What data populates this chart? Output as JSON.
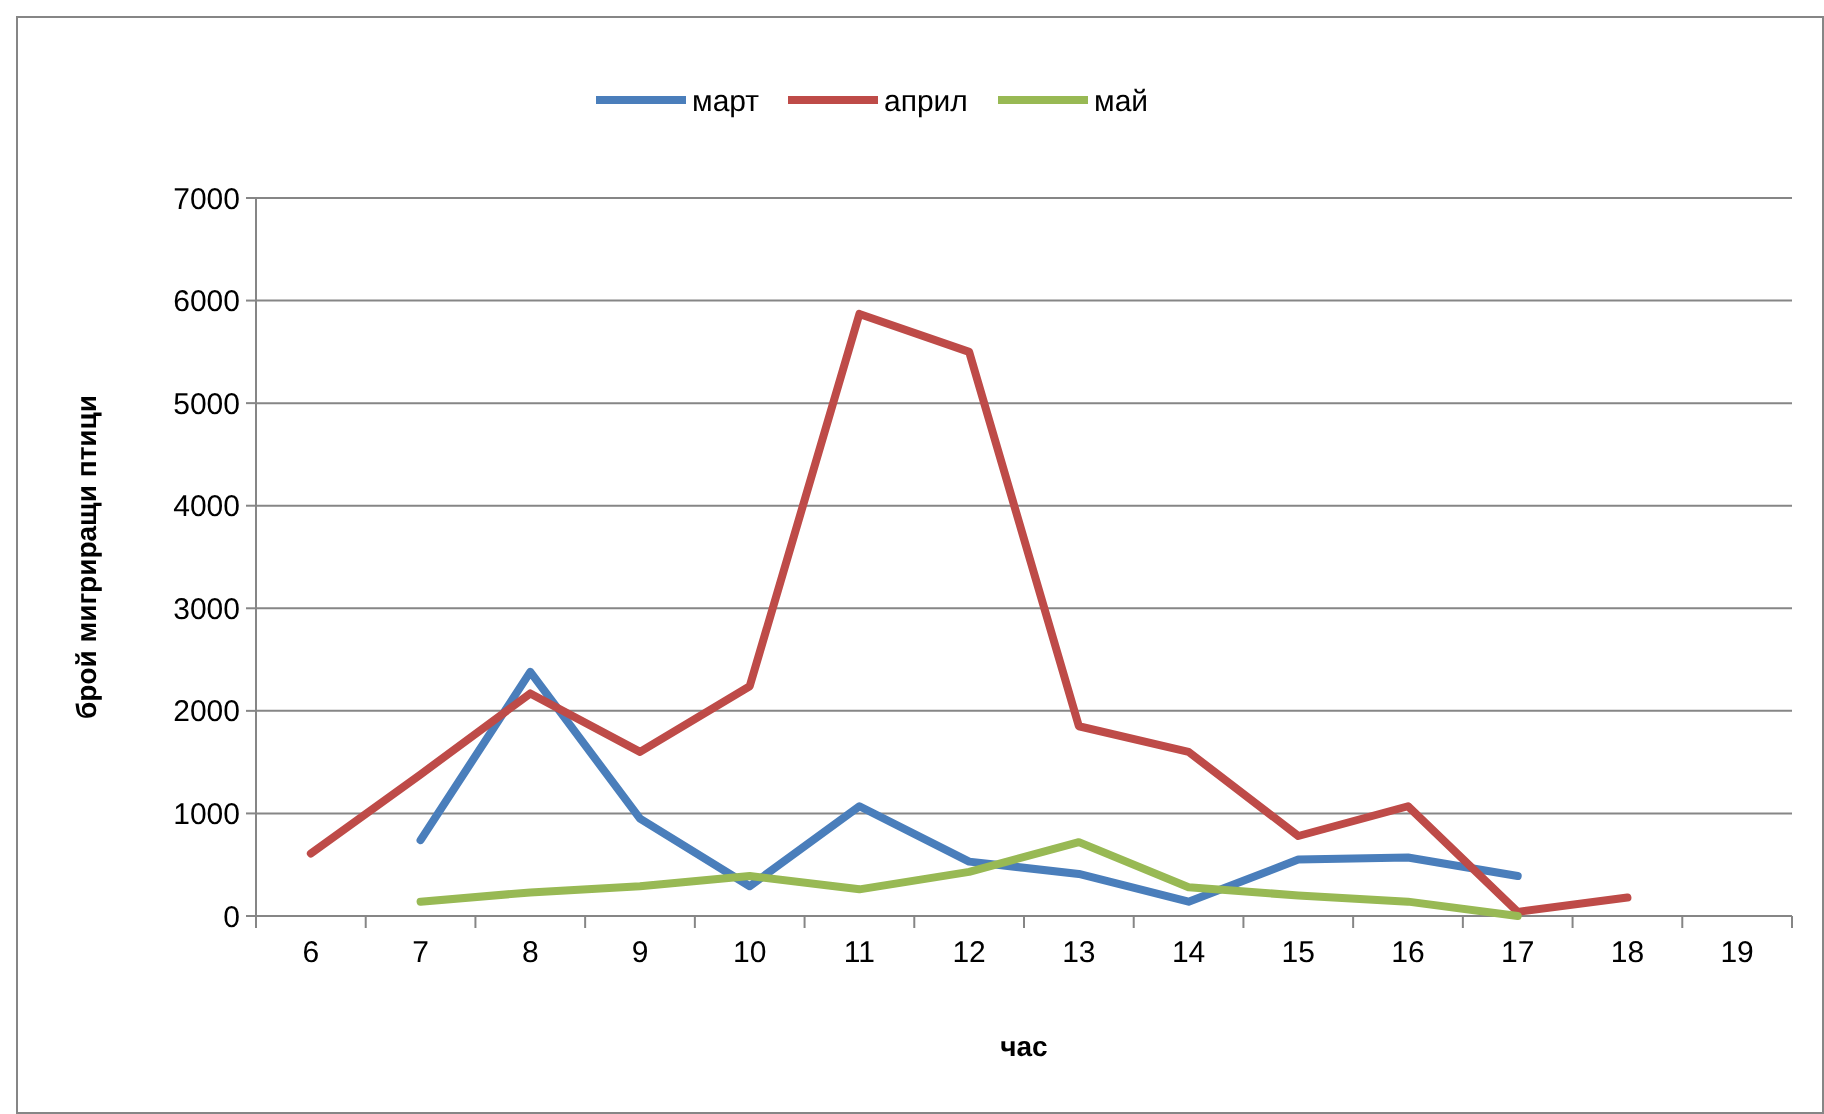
{
  "chart_data": {
    "type": "line",
    "xlabel": "час",
    "ylabel": "брой мигриращи птици",
    "categories": [
      "6",
      "7",
      "8",
      "9",
      "10",
      "11",
      "12",
      "13",
      "14",
      "15",
      "16",
      "17",
      "18",
      "19"
    ],
    "series": [
      {
        "name": "март",
        "color": "#4a7ebb",
        "values": [
          null,
          740,
          2380,
          950,
          290,
          1070,
          530,
          410,
          140,
          550,
          570,
          390,
          null,
          null
        ]
      },
      {
        "name": "април",
        "color": "#be4b48",
        "values": [
          610,
          1380,
          2170,
          1600,
          2240,
          5870,
          5500,
          1850,
          1600,
          780,
          1070,
          40,
          180,
          null
        ]
      },
      {
        "name": "май",
        "color": "#98b954",
        "values": [
          null,
          140,
          230,
          290,
          390,
          260,
          430,
          720,
          280,
          200,
          140,
          0,
          null,
          null
        ]
      }
    ],
    "ylim": [
      0,
      7000
    ],
    "yticks": [
      0,
      1000,
      2000,
      3000,
      4000,
      5000,
      6000,
      7000
    ],
    "grid": "y",
    "legend": "top",
    "marker": "none",
    "line_style": "solid"
  }
}
